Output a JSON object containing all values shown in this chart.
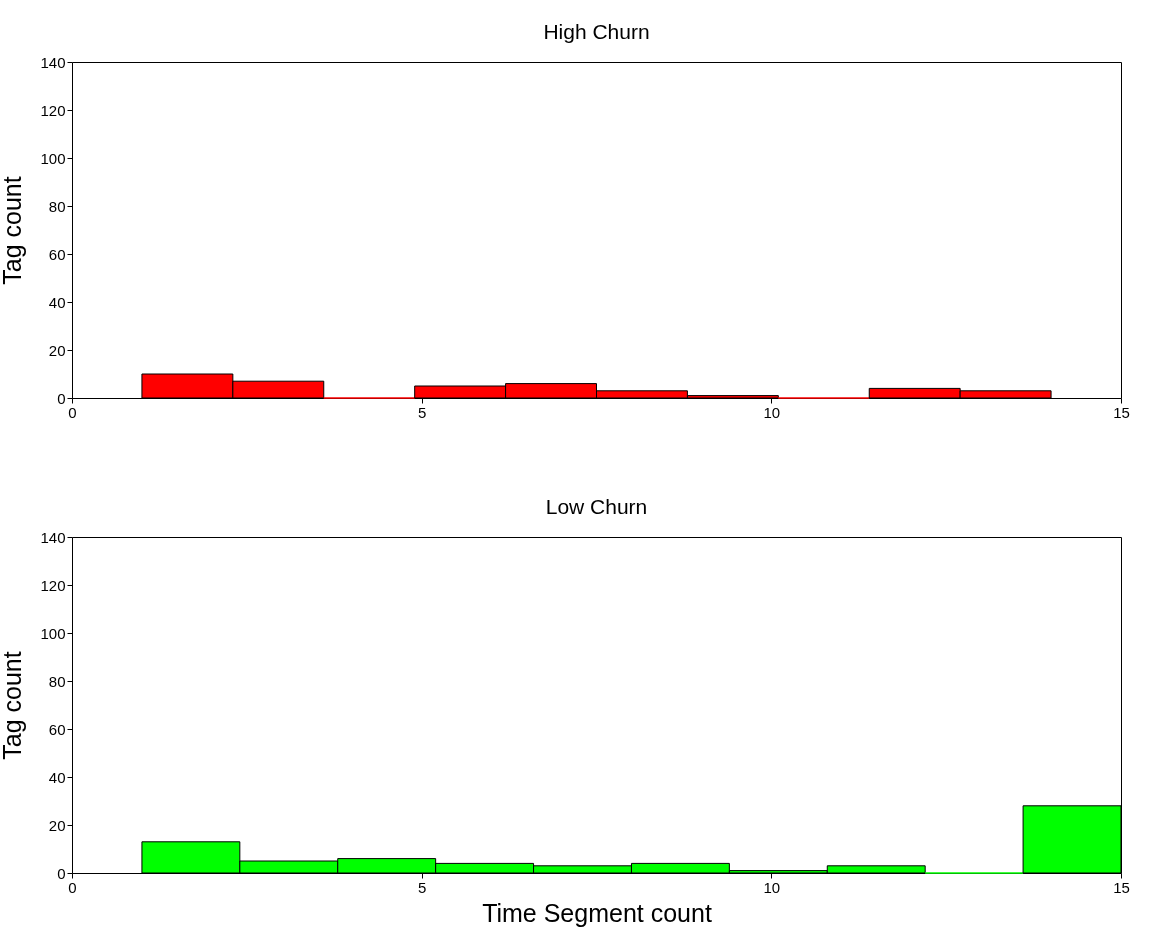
{
  "chart_data": [
    {
      "type": "histogram",
      "title": "High Churn",
      "ylabel": "Tag count",
      "color": "#ff0000",
      "bins": [
        1,
        2.3,
        3.6,
        4.9,
        6.2,
        7.5,
        8.8,
        10.1,
        11.4,
        12.7,
        14
      ],
      "values": [
        10,
        7,
        0,
        5,
        6,
        3,
        1,
        0,
        4,
        3
      ],
      "xlim": [
        0,
        15
      ],
      "xticks": [
        0,
        5,
        10,
        15
      ],
      "ylim": [
        0,
        140
      ],
      "yticks": [
        0,
        20,
        40,
        60,
        80,
        100,
        120,
        140
      ]
    },
    {
      "type": "histogram",
      "title": "Low Churn",
      "xlabel": "Time Segment count",
      "ylabel": "Tag count",
      "color": "#00ff00",
      "bins": [
        1,
        2.4,
        3.8,
        5.2,
        6.6,
        8,
        9.4,
        10.8,
        12.2,
        13.6,
        15
      ],
      "values": [
        13,
        5,
        6,
        4,
        3,
        4,
        1,
        3,
        0,
        28
      ],
      "xlim": [
        0,
        15
      ],
      "xticks": [
        0,
        5,
        10,
        15
      ],
      "ylim": [
        0,
        140
      ],
      "yticks": [
        0,
        20,
        40,
        60,
        80,
        100,
        120,
        140
      ]
    }
  ]
}
